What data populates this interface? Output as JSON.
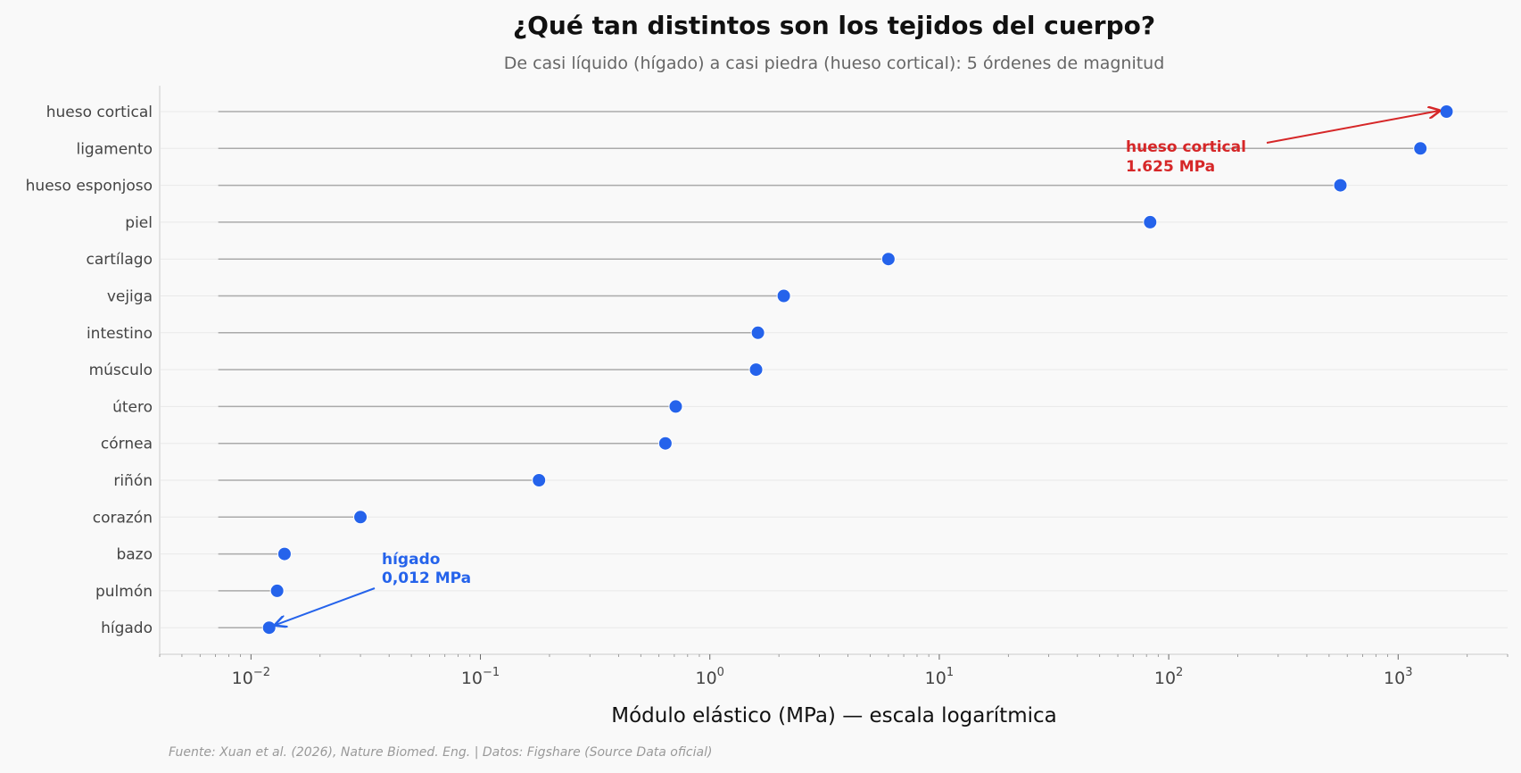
{
  "chart_data": {
    "type": "lollipop",
    "title": "¿Qué tan distintos son los tejidos del cuerpo?",
    "subtitle": "De casi líquido (hígado) a casi piedra (hueso cortical): 5 órdenes de magnitud",
    "xlabel": "Módulo elástico (MPa) — escala logarítmica",
    "x_scale": "log",
    "xlim": [
      0.004,
      3000
    ],
    "xticks": [
      {
        "value": 0.01,
        "base": "10",
        "exp": "−2"
      },
      {
        "value": 0.1,
        "base": "10",
        "exp": "−1"
      },
      {
        "value": 1,
        "base": "10",
        "exp": "0"
      },
      {
        "value": 10,
        "base": "10",
        "exp": "1"
      },
      {
        "value": 100,
        "base": "10",
        "exp": "2"
      },
      {
        "value": 1000,
        "base": "10",
        "exp": "3"
      }
    ],
    "baseline": 0.0072,
    "categories": [
      "hueso cortical",
      "ligamento",
      "hueso esponjoso",
      "piel",
      "cartílago",
      "vejiga",
      "intestino",
      "músculo",
      "útero",
      "córnea",
      "riñón",
      "corazón",
      "bazo",
      "pulmón",
      "hígado"
    ],
    "values": [
      1625,
      1250,
      560,
      83,
      6.0,
      2.1,
      1.62,
      1.59,
      0.71,
      0.64,
      0.18,
      0.03,
      0.014,
      0.013,
      0.012
    ],
    "grid": "horizontal",
    "colors": {
      "point": "#2563eb",
      "stem": "#aaaaaa",
      "max_annotation": "#d62728",
      "min_annotation": "#2563eb"
    },
    "annotations": [
      {
        "target": "hueso cortical",
        "line1": "hueso cortical",
        "line2": "1.625 MPa",
        "color": "#d62728"
      },
      {
        "target": "hígado",
        "line1": "hígado",
        "line2": "0,012 MPa",
        "color": "#2563eb"
      }
    ],
    "source": "Fuente: Xuan et al. (2026), Nature Biomed. Eng. | Datos: Figshare (Source Data oficial)"
  }
}
